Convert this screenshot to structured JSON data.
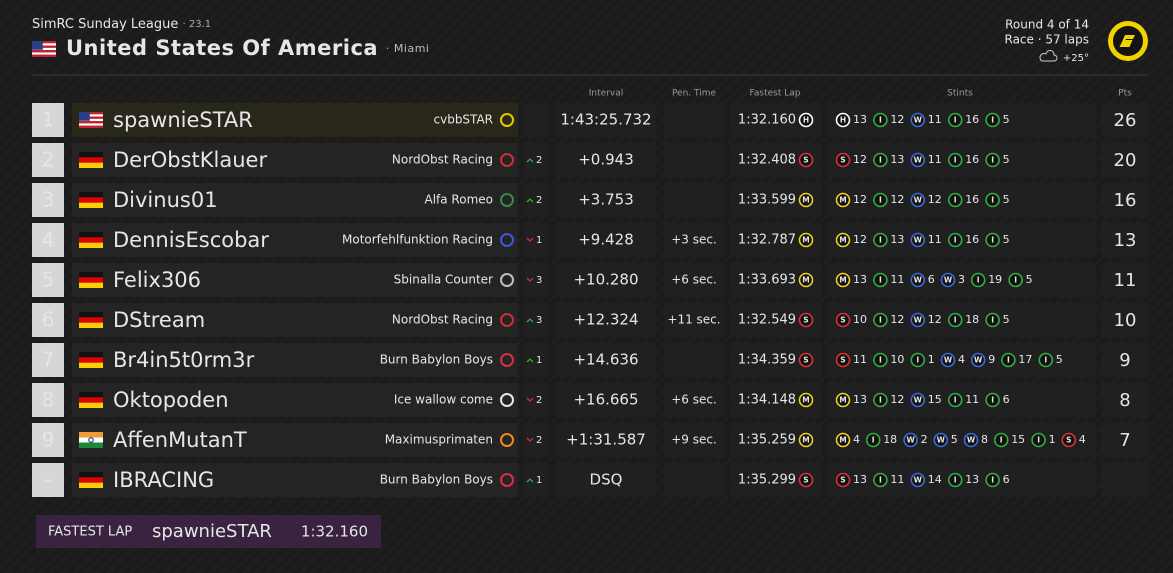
{
  "header": {
    "league": "SimRC Sunday League",
    "season": "· 23.1",
    "country": "United States Of America",
    "country_flag": "us",
    "city": "· Miami",
    "round": "Round 4 of 14",
    "race": "Race · 57 laps",
    "weather": "+25°"
  },
  "columns": {
    "interval": "Interval",
    "pen": "Pen. Time",
    "fastest": "Fastest Lap",
    "stints": "Stints",
    "pts": "Pts"
  },
  "table": {
    "rows": [
      {
        "pos": "1",
        "flag": "us",
        "driver": "spawnieSTAR",
        "team": "cvbbSTAR",
        "logo_color": "#e8c800",
        "interval": "1:43:25.732",
        "fastest": "1:32.160",
        "fastest_compound": "H",
        "highlight": true,
        "stints": [
          {
            "c": "H",
            "laps": "13"
          },
          {
            "c": "I",
            "laps": "12"
          },
          {
            "c": "W",
            "laps": "11"
          },
          {
            "c": "I",
            "laps": "16"
          },
          {
            "c": "I",
            "laps": "5"
          }
        ],
        "pts": "26"
      },
      {
        "pos": "2",
        "flag": "de",
        "driver": "DerObstKlauer",
        "team": "NordObst Racing",
        "logo_color": "#d23030",
        "dir": "up",
        "change": "2",
        "interval": "+0.943",
        "fastest": "1:32.408",
        "fastest_compound": "S",
        "stints": [
          {
            "c": "S",
            "laps": "12"
          },
          {
            "c": "I",
            "laps": "13"
          },
          {
            "c": "W",
            "laps": "11"
          },
          {
            "c": "I",
            "laps": "16"
          },
          {
            "c": "I",
            "laps": "5"
          }
        ],
        "pts": "20"
      },
      {
        "pos": "3",
        "flag": "de",
        "driver": "Divinus01",
        "team": "Alfa Romeo",
        "logo_color": "#3a8a4a",
        "dir": "up",
        "change": "2",
        "interval": "+3.753",
        "fastest": "1:33.599",
        "fastest_compound": "M",
        "stints": [
          {
            "c": "M",
            "laps": "12"
          },
          {
            "c": "I",
            "laps": "12"
          },
          {
            "c": "W",
            "laps": "12"
          },
          {
            "c": "I",
            "laps": "16"
          },
          {
            "c": "I",
            "laps": "5"
          }
        ],
        "pts": "16"
      },
      {
        "pos": "4",
        "flag": "de",
        "driver": "DennisEscobar",
        "team": "Motorfehlfunktion Racing",
        "logo_color": "#3a5ae0",
        "dir": "down",
        "change": "1",
        "interval": "+9.428",
        "pen": "+3 sec.",
        "fastest": "1:32.787",
        "fastest_compound": "M",
        "stints": [
          {
            "c": "M",
            "laps": "12"
          },
          {
            "c": "I",
            "laps": "13"
          },
          {
            "c": "W",
            "laps": "11"
          },
          {
            "c": "I",
            "laps": "16"
          },
          {
            "c": "I",
            "laps": "5"
          }
        ],
        "pts": "13"
      },
      {
        "pos": "5",
        "flag": "de",
        "driver": "Felix306",
        "team": "Sbinalla Counter",
        "logo_color": "#c0c0c0",
        "dir": "down",
        "change": "3",
        "interval": "+10.280",
        "pen": "+6 sec.",
        "fastest": "1:33.693",
        "fastest_compound": "M",
        "stints": [
          {
            "c": "M",
            "laps": "13"
          },
          {
            "c": "I",
            "laps": "11"
          },
          {
            "c": "W",
            "laps": "6"
          },
          {
            "c": "W",
            "laps": "3"
          },
          {
            "c": "I",
            "laps": "19"
          },
          {
            "c": "I",
            "laps": "5"
          }
        ],
        "pts": "11"
      },
      {
        "pos": "6",
        "flag": "de",
        "driver": "DStream",
        "team": "NordObst Racing",
        "logo_color": "#d23030",
        "dir": "up",
        "change": "3",
        "interval": "+12.324",
        "pen": "+11 sec.",
        "fastest": "1:32.549",
        "fastest_compound": "S",
        "stints": [
          {
            "c": "S",
            "laps": "10"
          },
          {
            "c": "I",
            "laps": "12"
          },
          {
            "c": "W",
            "laps": "12"
          },
          {
            "c": "I",
            "laps": "18"
          },
          {
            "c": "I",
            "laps": "5"
          }
        ],
        "pts": "10"
      },
      {
        "pos": "7",
        "flag": "de",
        "driver": "Br4in5t0rm3r",
        "team": "Burn Babylon Boys",
        "logo_color": "#d83040",
        "dir": "up",
        "change": "1",
        "interval": "+14.636",
        "fastest": "1:34.359",
        "fastest_compound": "S",
        "stints": [
          {
            "c": "S",
            "laps": "11"
          },
          {
            "c": "I",
            "laps": "10"
          },
          {
            "c": "I",
            "laps": "1"
          },
          {
            "c": "W",
            "laps": "4"
          },
          {
            "c": "W",
            "laps": "9"
          },
          {
            "c": "I",
            "laps": "17"
          },
          {
            "c": "I",
            "laps": "5"
          }
        ],
        "pts": "9"
      },
      {
        "pos": "8",
        "flag": "de",
        "driver": "Oktopoden",
        "team": "Ice wallow come",
        "logo_color": "#e8e8e8",
        "dir": "down",
        "change": "2",
        "interval": "+16.665",
        "pen": "+6 sec.",
        "fastest": "1:34.148",
        "fastest_compound": "M",
        "stints": [
          {
            "c": "M",
            "laps": "13"
          },
          {
            "c": "I",
            "laps": "12"
          },
          {
            "c": "W",
            "laps": "15"
          },
          {
            "c": "I",
            "laps": "11"
          },
          {
            "c": "I",
            "laps": "6"
          }
        ],
        "pts": "8"
      },
      {
        "pos": "9",
        "flag": "in",
        "driver": "AffenMutanT",
        "team": "Maximusprimaten",
        "logo_color": "#f08a1e",
        "dir": "down",
        "change": "2",
        "interval": "+1:31.587",
        "pen": "+9 sec.",
        "fastest": "1:35.259",
        "fastest_compound": "M",
        "stints": [
          {
            "c": "M",
            "laps": "4"
          },
          {
            "c": "I",
            "laps": "18"
          },
          {
            "c": "W",
            "laps": "2"
          },
          {
            "c": "W",
            "laps": "5"
          },
          {
            "c": "W",
            "laps": "8"
          },
          {
            "c": "I",
            "laps": "15"
          },
          {
            "c": "I",
            "laps": "1"
          },
          {
            "c": "S",
            "laps": "4"
          }
        ],
        "pts": "7"
      },
      {
        "pos": "-",
        "flag": "de",
        "driver": "IBRACING",
        "team": "Burn Babylon Boys",
        "logo_color": "#d83040",
        "dir": "up",
        "change": "1",
        "interval": "DSQ",
        "fastest": "1:35.299",
        "fastest_compound": "S",
        "stints": [
          {
            "c": "S",
            "laps": "13"
          },
          {
            "c": "I",
            "laps": "11"
          },
          {
            "c": "W",
            "laps": "14"
          },
          {
            "c": "I",
            "laps": "13"
          },
          {
            "c": "I",
            "laps": "6"
          }
        ]
      }
    ]
  },
  "fastest_lap": {
    "label": "FASTEST LAP",
    "driver": "spawnieSTAR",
    "time": "1:32.160"
  }
}
